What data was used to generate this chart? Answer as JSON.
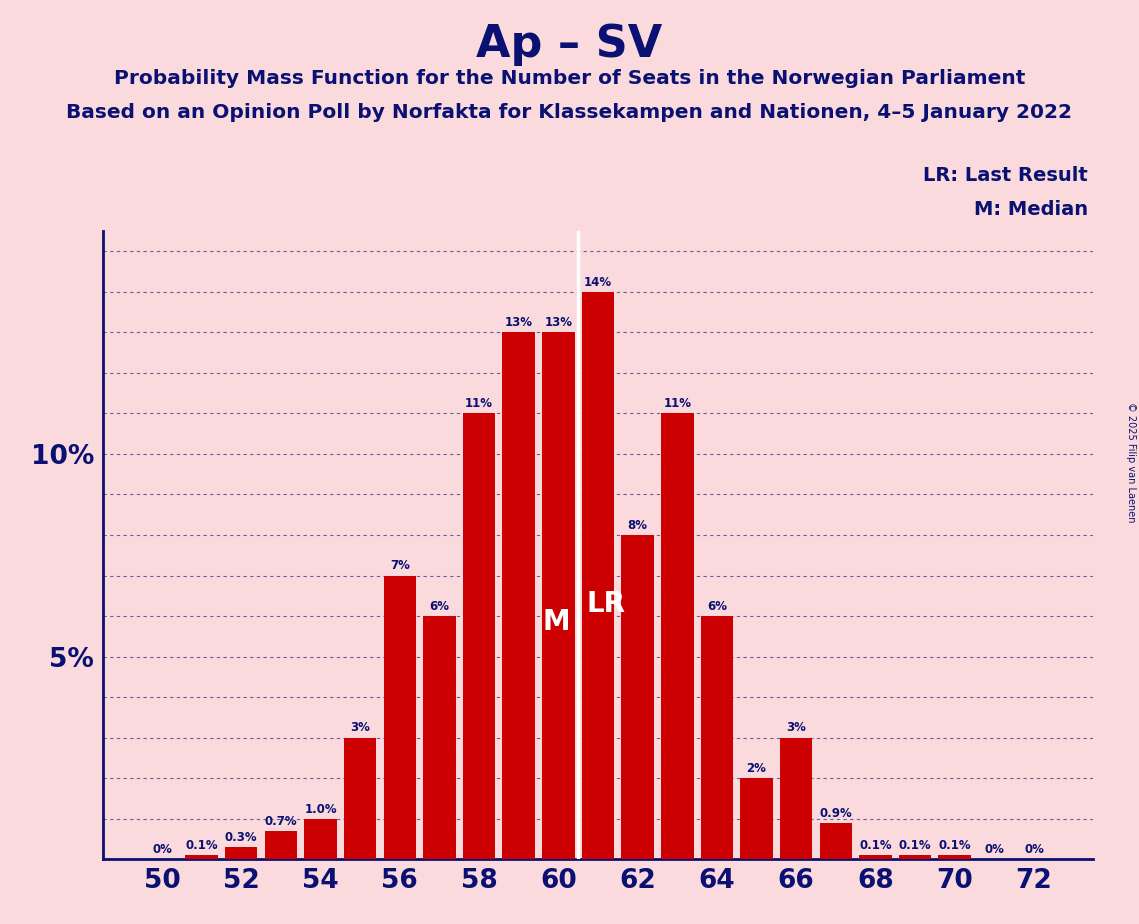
{
  "title": "Ap – SV",
  "subtitle1": "Probability Mass Function for the Number of Seats in the Norwegian Parliament",
  "subtitle2": "Based on an Opinion Poll by Norfakta for Klassekampen and Nationen, 4–5 January 2022",
  "legend_lr": "LR: Last Result",
  "legend_m": "M: Median",
  "copyright": "© 2025 Filip van Laenen",
  "seats": [
    50,
    51,
    52,
    53,
    54,
    55,
    56,
    57,
    58,
    59,
    60,
    61,
    62,
    63,
    64,
    65,
    66,
    67,
    68,
    69,
    70,
    71,
    72
  ],
  "probabilities": [
    0.0,
    0.001,
    0.003,
    0.007,
    0.01,
    0.03,
    0.07,
    0.06,
    0.11,
    0.13,
    0.13,
    0.14,
    0.08,
    0.11,
    0.06,
    0.02,
    0.03,
    0.009,
    0.001,
    0.001,
    0.001,
    0.0,
    0.0
  ],
  "bar_color": "#cc0000",
  "background_color": "#fadadd",
  "text_color_dark": "#0a1172",
  "text_color_white": "#ffffff",
  "median_seat": 60,
  "lr_seat": 61,
  "xlabel_seats": [
    50,
    52,
    54,
    56,
    58,
    60,
    62,
    64,
    66,
    68,
    70,
    72
  ],
  "ylim": [
    0,
    0.155
  ],
  "yticks": [
    0.0,
    0.01,
    0.02,
    0.03,
    0.04,
    0.05,
    0.06,
    0.07,
    0.08,
    0.09,
    0.1,
    0.11,
    0.12,
    0.13,
    0.14,
    0.15
  ],
  "ytick_labels_shown": {
    "0.05": "5%",
    "0.10": "10%"
  },
  "bar_labels": {
    "50": "0%",
    "51": "0.1%",
    "52": "0.3%",
    "53": "0.7%",
    "54": "1.0%",
    "55": "3%",
    "56": "7%",
    "57": "6%",
    "58": "11%",
    "59": "13%",
    "60": "13%",
    "61": "14%",
    "62": "8%",
    "63": "11%",
    "64": "6%",
    "65": "2%",
    "66": "3%",
    "67": "0.9%",
    "68": "0.1%",
    "69": "0.1%",
    "70": "0.1%",
    "71": "0%",
    "72": "0%"
  }
}
